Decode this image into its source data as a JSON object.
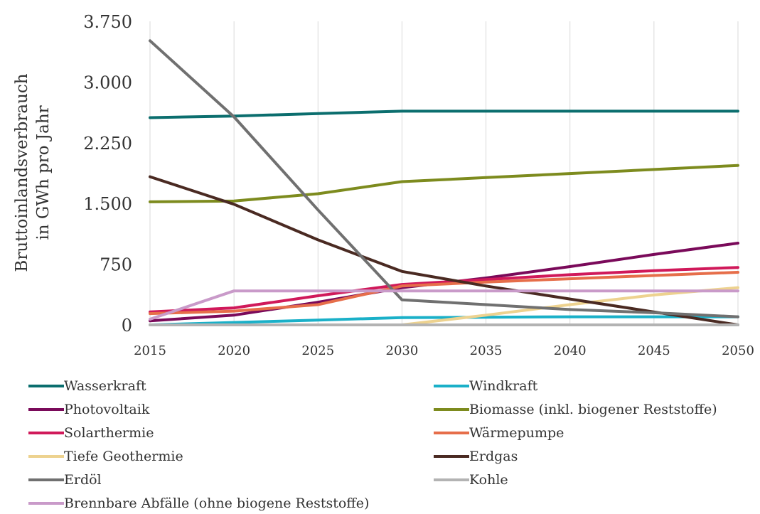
{
  "chart_data": {
    "type": "line",
    "title": "",
    "xlabel": "",
    "ylabel_lines": [
      "Bruttoinlandsverbrauch",
      "in GWh pro Jahr"
    ],
    "x": [
      2015,
      2020,
      2025,
      2030,
      2035,
      2040,
      2045,
      2050
    ],
    "x_tick_labels": [
      "2015",
      "2020",
      "2025",
      "2030",
      "2035",
      "2040",
      "2045",
      "2050"
    ],
    "y_ticks": [
      0,
      750,
      1500,
      2250,
      3000,
      3750
    ],
    "y_tick_labels": [
      "0",
      "750",
      "1.500",
      "2.250",
      "3.000",
      "3.750"
    ],
    "ylim": [
      0,
      3750
    ],
    "xlim": [
      2015,
      2050
    ],
    "grid": "vertical",
    "legend_position": "bottom",
    "series": [
      {
        "name": "Wasserkraft",
        "color": "#0b6e6e",
        "values": [
          2560,
          2580,
          2610,
          2640,
          2640,
          2640,
          2640,
          2640
        ]
      },
      {
        "name": "Windkraft",
        "color": "#1ab0c8",
        "values": [
          0,
          30,
          60,
          90,
          95,
          100,
          100,
          100
        ]
      },
      {
        "name": "Photovoltaik",
        "color": "#7a0a5a",
        "values": [
          50,
          120,
          280,
          460,
          580,
          720,
          870,
          1010
        ]
      },
      {
        "name": "Biomasse (inkl. biogener Reststoffe)",
        "color": "#7d8b1e",
        "values": [
          1520,
          1530,
          1620,
          1770,
          1820,
          1870,
          1920,
          1970
        ]
      },
      {
        "name": "Solarthermie",
        "color": "#d0195a",
        "values": [
          160,
          210,
          360,
          500,
          560,
          620,
          670,
          710
        ]
      },
      {
        "name": "Wärmepumpe",
        "color": "#e66e4a",
        "values": [
          140,
          170,
          250,
          480,
          530,
          570,
          610,
          650
        ]
      },
      {
        "name": "Tiefe Geothermie",
        "color": "#edd28f",
        "values": [
          0,
          0,
          0,
          0,
          120,
          250,
          370,
          460
        ]
      },
      {
        "name": "Erdgas",
        "color": "#4a2a22",
        "values": [
          1830,
          1490,
          1050,
          660,
          480,
          320,
          160,
          0
        ]
      },
      {
        "name": "Erdöl",
        "color": "#707070",
        "values": [
          3510,
          2570,
          1420,
          310,
          250,
          190,
          150,
          100
        ]
      },
      {
        "name": "Kohle",
        "color": "#b3b3b3",
        "values": [
          0,
          0,
          0,
          0,
          0,
          0,
          0,
          0
        ]
      },
      {
        "name": "Brennbare Abfälle (ohne biogene Reststoffe)",
        "color": "#c99ac9",
        "values": [
          70,
          420,
          420,
          420,
          420,
          420,
          420,
          420
        ]
      }
    ]
  },
  "legend": {
    "items": [
      {
        "name": "Wasserkraft",
        "color": "#0b6e6e"
      },
      {
        "name": "Windkraft",
        "color": "#1ab0c8"
      },
      {
        "name": "Photovoltaik",
        "color": "#7a0a5a"
      },
      {
        "name": "Biomasse (inkl. biogener Reststoffe)",
        "color": "#7d8b1e"
      },
      {
        "name": "Solarthermie",
        "color": "#d0195a"
      },
      {
        "name": "Wärmepumpe",
        "color": "#e66e4a"
      },
      {
        "name": "Tiefe Geothermie",
        "color": "#edd28f"
      },
      {
        "name": "Erdgas",
        "color": "#4a2a22"
      },
      {
        "name": "Erdöl",
        "color": "#707070"
      },
      {
        "name": "Kohle",
        "color": "#b3b3b3"
      },
      {
        "name": "Brennbare Abfälle (ohne biogene Reststoffe)",
        "color": "#c99ac9"
      }
    ]
  }
}
